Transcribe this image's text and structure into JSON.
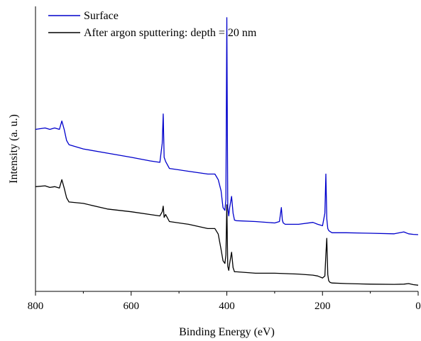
{
  "chart_data": {
    "type": "line",
    "xlabel": "Binding Energy (eV)",
    "ylabel": "Intensity (a. u.)",
    "xlim": [
      800,
      0
    ],
    "x_reversed": true,
    "ylim": [
      0,
      100
    ],
    "y_tick_labels_shown": false,
    "x_ticks": [
      800,
      600,
      400,
      200,
      0
    ],
    "x_tick_labels": [
      "800",
      "600",
      "400",
      "200",
      "0"
    ],
    "legend_position": "top-left",
    "grid": false,
    "series": [
      {
        "name": "Surface",
        "color": "#0000cc",
        "x": [
          800,
          780,
          770,
          760,
          750,
          745,
          740,
          735,
          730,
          700,
          650,
          600,
          560,
          540,
          535,
          533,
          531,
          528,
          520,
          480,
          440,
          425,
          418,
          412,
          408,
          404,
          402,
          400,
          398,
          396,
          394,
          390,
          387,
          384,
          380,
          340,
          300,
          290,
          286,
          284,
          282,
          278,
          250,
          220,
          210,
          200,
          195,
          193,
          191,
          189,
          187,
          184,
          180,
          150,
          100,
          50,
          30,
          20,
          10,
          0
        ],
        "y": [
          58,
          58.5,
          58,
          58.5,
          58,
          61,
          58,
          54,
          52.5,
          51,
          49.5,
          48,
          46.7,
          46.2,
          53,
          63.5,
          48,
          46.5,
          44,
          43,
          42,
          42,
          40,
          36,
          30,
          29,
          33,
          98,
          30,
          27,
          30,
          34,
          28,
          25.5,
          25.3,
          25,
          24.5,
          25,
          30,
          25.5,
          24.5,
          24,
          24,
          24.7,
          24,
          23.5,
          28,
          42,
          26,
          22.5,
          21.8,
          21.4,
          21,
          21,
          20.8,
          20.6,
          21.3,
          20.6,
          20.4,
          20.3
        ]
      },
      {
        "name": "After argon sputtering: depth = 20 nm",
        "color": "#000000",
        "x": [
          800,
          780,
          770,
          760,
          750,
          745,
          740,
          735,
          730,
          700,
          650,
          600,
          560,
          540,
          535,
          533,
          531,
          528,
          520,
          480,
          440,
          425,
          418,
          412,
          408,
          404,
          402,
          400,
          398,
          396,
          394,
          390,
          387,
          384,
          380,
          340,
          300,
          250,
          220,
          210,
          200,
          195,
          193,
          191,
          189,
          187,
          184,
          180,
          150,
          100,
          50,
          30,
          20,
          10,
          0
        ],
        "y": [
          37.5,
          37.8,
          37.2,
          37.5,
          37,
          40,
          37,
          33.5,
          32,
          31.5,
          29.5,
          28.5,
          27.5,
          27,
          28.5,
          30.5,
          26.5,
          27.5,
          25,
          24,
          22.5,
          22.5,
          20.5,
          15,
          11,
          10,
          13,
          31,
          9,
          7.5,
          10,
          14,
          8.5,
          7,
          7,
          6.5,
          6.5,
          6.2,
          5.8,
          5.5,
          4.8,
          5.5,
          13.2,
          19,
          6,
          3.8,
          3.2,
          3,
          2.8,
          2.6,
          2.5,
          2.6,
          2.8,
          2.4,
          2.2
        ]
      }
    ]
  }
}
